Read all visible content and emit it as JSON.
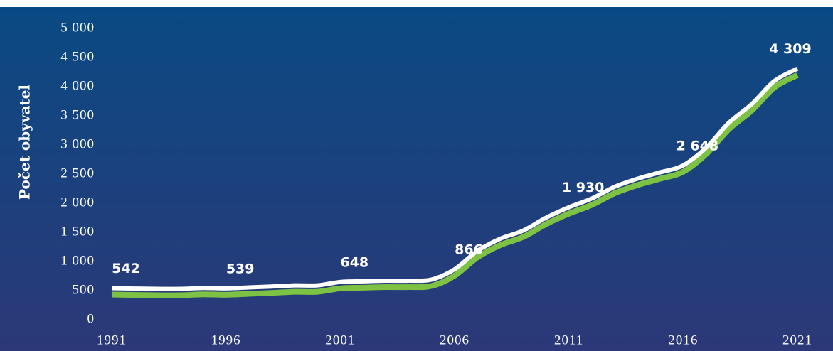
{
  "chart_data": {
    "type": "line",
    "y_label": "Počet obyvatel",
    "x": [
      1991,
      1992,
      1993,
      1994,
      1995,
      1996,
      1997,
      1998,
      1999,
      2000,
      2001,
      2002,
      2003,
      2004,
      2005,
      2006,
      2007,
      2008,
      2009,
      2010,
      2011,
      2012,
      2013,
      2014,
      2015,
      2016,
      2017,
      2018,
      2019,
      2020,
      2021
    ],
    "series": [
      {
        "color": "#ffffff",
        "values": [
          542,
          535,
          530,
          530,
          545,
          539,
          555,
          570,
          590,
          590,
          648,
          660,
          670,
          670,
          690,
          866,
          1180,
          1390,
          1530,
          1750,
          1930,
          2080,
          2280,
          2420,
          2530,
          2648,
          2950,
          3380,
          3700,
          4100,
          4309
        ],
        "value_labels": [
          "542",
          null,
          null,
          null,
          null,
          "539",
          null,
          null,
          null,
          null,
          "648",
          null,
          null,
          null,
          null,
          "866",
          null,
          null,
          null,
          null,
          "1 930",
          null,
          null,
          null,
          null,
          "2 648",
          null,
          null,
          null,
          null,
          "4 309"
        ]
      }
    ],
    "xlim": [
      1991,
      2021
    ],
    "xticks": [
      1991,
      1996,
      2001,
      2006,
      2011,
      2016,
      2021
    ],
    "ylim": [
      0,
      5000
    ],
    "yticks": [
      0,
      500,
      {
        "value": 1000,
        "label": "1 000"
      },
      {
        "value": 1500,
        "label": "1 500"
      },
      {
        "value": 2000,
        "label": "2 000"
      },
      {
        "value": 2500,
        "label": "2 500"
      },
      {
        "value": 3000,
        "label": "3 000"
      },
      {
        "value": 3500,
        "label": "3 500"
      },
      {
        "value": 4000,
        "label": "4 000"
      },
      {
        "value": 4500,
        "label": "4 500"
      },
      {
        "value": 5000,
        "label": "5 000"
      }
    ],
    "accent_color": "#7dc242"
  }
}
